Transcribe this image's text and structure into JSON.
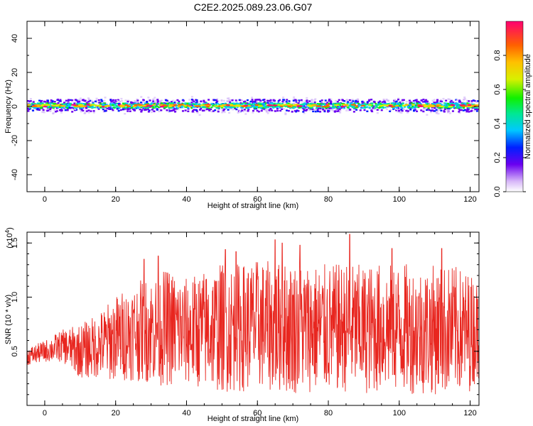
{
  "title": "C2E2.2025.089.23.06.G07",
  "colors": {
    "snr_line": "#e8261f",
    "background": "#ffffff",
    "axis": "#000000"
  },
  "chart_data": [
    {
      "type": "heatmap",
      "name": "spectrogram",
      "xlabel": "Height of straight line (km)",
      "ylabel": "Frequency (Hz)",
      "xlim": [
        -5,
        122.5
      ],
      "ylim": [
        -50,
        50
      ],
      "x_ticks": [
        0,
        20,
        40,
        60,
        80,
        100,
        120
      ],
      "y_ticks": [
        40,
        20,
        0,
        -20,
        -40
      ],
      "band_center_hz": 0.5,
      "band_core_halfwidth_hz": 1.5,
      "band_outer_halfwidth_hz": 4,
      "colorbar": {
        "label": "Normalized spectral amplitude",
        "range": [
          0.0,
          1.0
        ],
        "ticks": [
          0.0,
          0.2,
          0.4,
          0.6,
          0.8
        ],
        "tick_labels": [
          "0.0",
          "0.2",
          "0.4",
          "0.6",
          "0.8"
        ],
        "colormap": "rainbow"
      }
    },
    {
      "type": "line",
      "name": "snr",
      "xlabel": "Height of straight line (km)",
      "ylabel": "SNR (10 * v/v)",
      "scale_label": "(x10",
      "scale_exponent": "4",
      "scale_close": ")",
      "xlim": [
        -5,
        122.5
      ],
      "ylim": [
        0.0,
        1.6
      ],
      "x_ticks": [
        0,
        20,
        40,
        60,
        80,
        100,
        120
      ],
      "y_ticks": [
        0.5,
        1.0,
        1.5
      ],
      "y_tick_labels": [
        "0.5",
        "1.0",
        "1.5"
      ],
      "series_anchors_x": [
        -5,
        0,
        5,
        10,
        15,
        20,
        25,
        30,
        35,
        40,
        45,
        50,
        55,
        60,
        65,
        70,
        75,
        80,
        85,
        90,
        95,
        100,
        105,
        110,
        115,
        120,
        122.5
      ],
      "series_anchors_mean": [
        0.45,
        0.5,
        0.55,
        0.5,
        0.55,
        0.62,
        0.68,
        0.7,
        0.72,
        0.68,
        0.7,
        0.72,
        0.72,
        0.75,
        0.72,
        0.72,
        0.72,
        0.7,
        0.72,
        0.7,
        0.72,
        0.72,
        0.7,
        0.7,
        0.7,
        0.68,
        0.7
      ],
      "series_anchors_amplitude": [
        0.08,
        0.1,
        0.15,
        0.25,
        0.3,
        0.4,
        0.45,
        0.5,
        0.55,
        0.5,
        0.55,
        0.6,
        0.6,
        0.6,
        0.6,
        0.62,
        0.6,
        0.6,
        0.6,
        0.6,
        0.6,
        0.6,
        0.6,
        0.6,
        0.6,
        0.55,
        0.45
      ],
      "peak_x": [
        86,
        65,
        67,
        51,
        72,
        98,
        54,
        112,
        32,
        28
      ],
      "peak_y": [
        1.58,
        1.53,
        1.5,
        1.44,
        1.48,
        1.45,
        1.42,
        1.45,
        1.38,
        1.35
      ]
    }
  ]
}
